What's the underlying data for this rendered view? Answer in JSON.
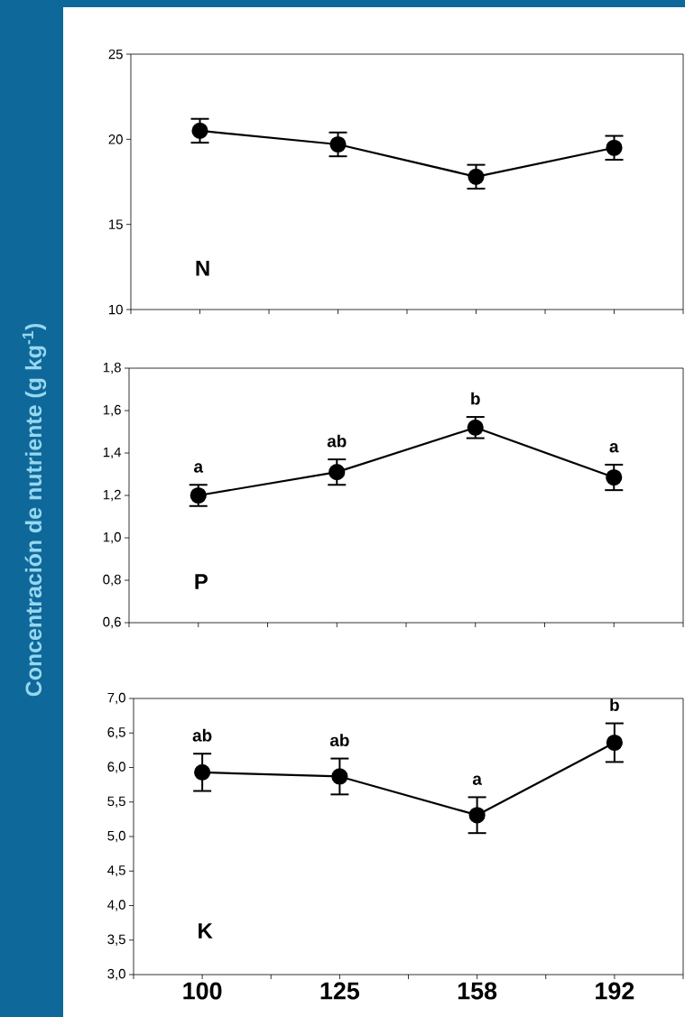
{
  "chart_data": [
    {
      "type": "line",
      "categories": [
        "100",
        "125",
        "158",
        "192"
      ],
      "tick_labels": "y",
      "marker": "circle",
      "line_style": "solid",
      "grid": false,
      "series": [
        {
          "color": "#000000",
          "values": [
            20.5,
            19.7,
            17.8,
            19.5
          ],
          "errors": [
            0.7,
            0.7,
            0.7,
            0.7
          ]
        }
      ],
      "ylim": [
        10,
        25
      ],
      "yticks": [
        10,
        15,
        20,
        25
      ],
      "annotations": [
        "N"
      ]
    },
    {
      "type": "line",
      "categories": [
        "100",
        "125",
        "158",
        "192"
      ],
      "tick_labels": "y",
      "marker": "circle",
      "line_style": "solid",
      "grid": false,
      "ylabel": "Concentración de nutriente (g kg$^{-1}$)",
      "series": [
        {
          "color": "#000000",
          "values": [
            1.2,
            1.31,
            1.52,
            1.285
          ],
          "errors": [
            0.05,
            0.06,
            0.05,
            0.06
          ]
        }
      ],
      "ylim": [
        0.6,
        1.8
      ],
      "yticks": [
        {
          "value": 0.6,
          "label": "0,6"
        },
        {
          "value": 0.8,
          "label": "0,8"
        },
        {
          "value": 1.0,
          "label": "1,0"
        },
        {
          "value": 1.2,
          "label": "1,2"
        },
        {
          "value": 1.4,
          "label": "1,4"
        },
        {
          "value": 1.6,
          "label": "1,6"
        },
        {
          "value": 1.8,
          "label": "1,8"
        }
      ],
      "annotations": [
        "P",
        {
          "text": "a",
          "x": "100",
          "y": 1.2
        },
        {
          "text": "ab",
          "x": "125",
          "y": 1.31
        },
        {
          "text": "b",
          "x": "158",
          "y": 1.52
        },
        {
          "text": "a",
          "x": "192",
          "y": 1.285
        }
      ]
    },
    {
      "type": "line",
      "categories": [
        "100",
        "125",
        "158",
        "192"
      ],
      "marker": "circle",
      "line_style": "solid",
      "grid": false,
      "series": [
        {
          "color": "#000000",
          "values": [
            5.93,
            5.87,
            5.31,
            6.36
          ],
          "errors": [
            0.27,
            0.26,
            0.26,
            0.28
          ]
        }
      ],
      "ylim": [
        3.0,
        7.0
      ],
      "yticks": [
        {
          "value": 3.0,
          "label": "3,0"
        },
        {
          "value": 3.5,
          "label": "3,5"
        },
        {
          "value": 4.0,
          "label": "4,0"
        },
        {
          "value": 4.5,
          "label": "4,5"
        },
        {
          "value": 5.0,
          "label": "5,0"
        },
        {
          "value": 5.5,
          "label": "5,5"
        },
        {
          "value": 6.0,
          "label": "6,0"
        },
        {
          "value": 6.5,
          "label": "6,5"
        },
        {
          "value": 7.0,
          "label": "7,0"
        }
      ],
      "annotations": [
        "K",
        {
          "text": "ab",
          "x": "100",
          "y": 5.93
        },
        {
          "text": "ab",
          "x": "125",
          "y": 5.87
        },
        {
          "text": "a",
          "x": "158",
          "y": 5.31
        },
        {
          "text": "b",
          "x": "192",
          "y": 6.36
        }
      ]
    }
  ]
}
